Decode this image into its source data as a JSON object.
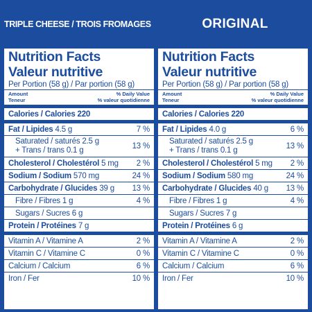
{
  "left": {
    "header": "TRIPLE CHEESE / TROIS FROMAGES",
    "title_en": "Nutrition Facts",
    "title_fr": "Valeur nutritive",
    "serving": "Per Portion (58 g) / Par portion (58 g)",
    "amount_en": "Amount",
    "amount_fr": "Teneur",
    "dv_en": "% Daily Value",
    "dv_fr": "% valeur quotidienne",
    "calories": "Calories / Calories 220",
    "fat_label": "Fat / Lipides",
    "fat_value": "4.5 g",
    "fat_pct": "7 %",
    "sat_line1": "Saturated / saturés 2.5 g",
    "sat_line2": "+ Trans / trans 0.1 g",
    "sat_pct": "13 %",
    "chol_label": "Cholesterol / Cholestérol",
    "chol_value": "5 mg",
    "chol_pct": "2 %",
    "sodium_label": "Sodium / Sodium",
    "sodium_value": "570 mg",
    "sodium_pct": "24 %",
    "carb_label": "Carbohydrate / Glucides",
    "carb_value": "39 g",
    "carb_pct": "13 %",
    "fibre": "Fibre / Fibres 1 g",
    "fibre_pct": "4 %",
    "sugars": "Sugars / Sucres 6 g",
    "protein_label": "Protein / Protéines",
    "protein_value": "7 g",
    "vita": "Vitamin A / Vitamine A",
    "vita_pct": "2 %",
    "vitc": "Vitamin C / Vitamine C",
    "vitc_pct": "0 %",
    "calcium": "Calcium / Calcium",
    "calcium_pct": "6 %",
    "iron": "Iron / Fer",
    "iron_pct": "10 %"
  },
  "right": {
    "header": "ORIGINAL",
    "title_en": "Nutrition Facts",
    "title_fr": "Valeur nutritive",
    "serving": "Per Portion (58 g) / Par portion (58 g)",
    "amount_en": "Amount",
    "amount_fr": "Teneur",
    "dv_en": "% Daily Value",
    "dv_fr": "% valeur quotidienne",
    "calories": "Calories / Calories 220",
    "fat_label": "Fat / Lipides",
    "fat_value": "4.0 g",
    "fat_pct": "6 %",
    "sat_line1": "Saturated / saturés 2.5 g",
    "sat_line2": "+ Trans / trans 0.1 g",
    "sat_pct": "13 %",
    "chol_label": "Cholesterol / Cholestérol",
    "chol_value": "5 mg",
    "chol_pct": "2 %",
    "sodium_label": "Sodium / Sodium",
    "sodium_value": "580 mg",
    "sodium_pct": "24 %",
    "carb_label": "Carbohydrate / Glucides",
    "carb_value": "40 g",
    "carb_pct": "13 %",
    "fibre": "Fibre / Fibres 1 g",
    "fibre_pct": "4 %",
    "sugars": "Sugars / Sucres 7 g",
    "protein_label": "Protein / Protéines",
    "protein_value": "6 g",
    "vita": "Vitamin A / Vitamine A",
    "vita_pct": "2 %",
    "vitc": "Vitamin C / Vitamine C",
    "vitc_pct": "0 %",
    "calcium": "Calcium / Calcium",
    "calcium_pct": "6 %",
    "iron": "Iron / Fer",
    "iron_pct": "10 %"
  },
  "colors": {
    "brand_blue": "#1b4c9e",
    "label_bg": "#ffffff"
  }
}
